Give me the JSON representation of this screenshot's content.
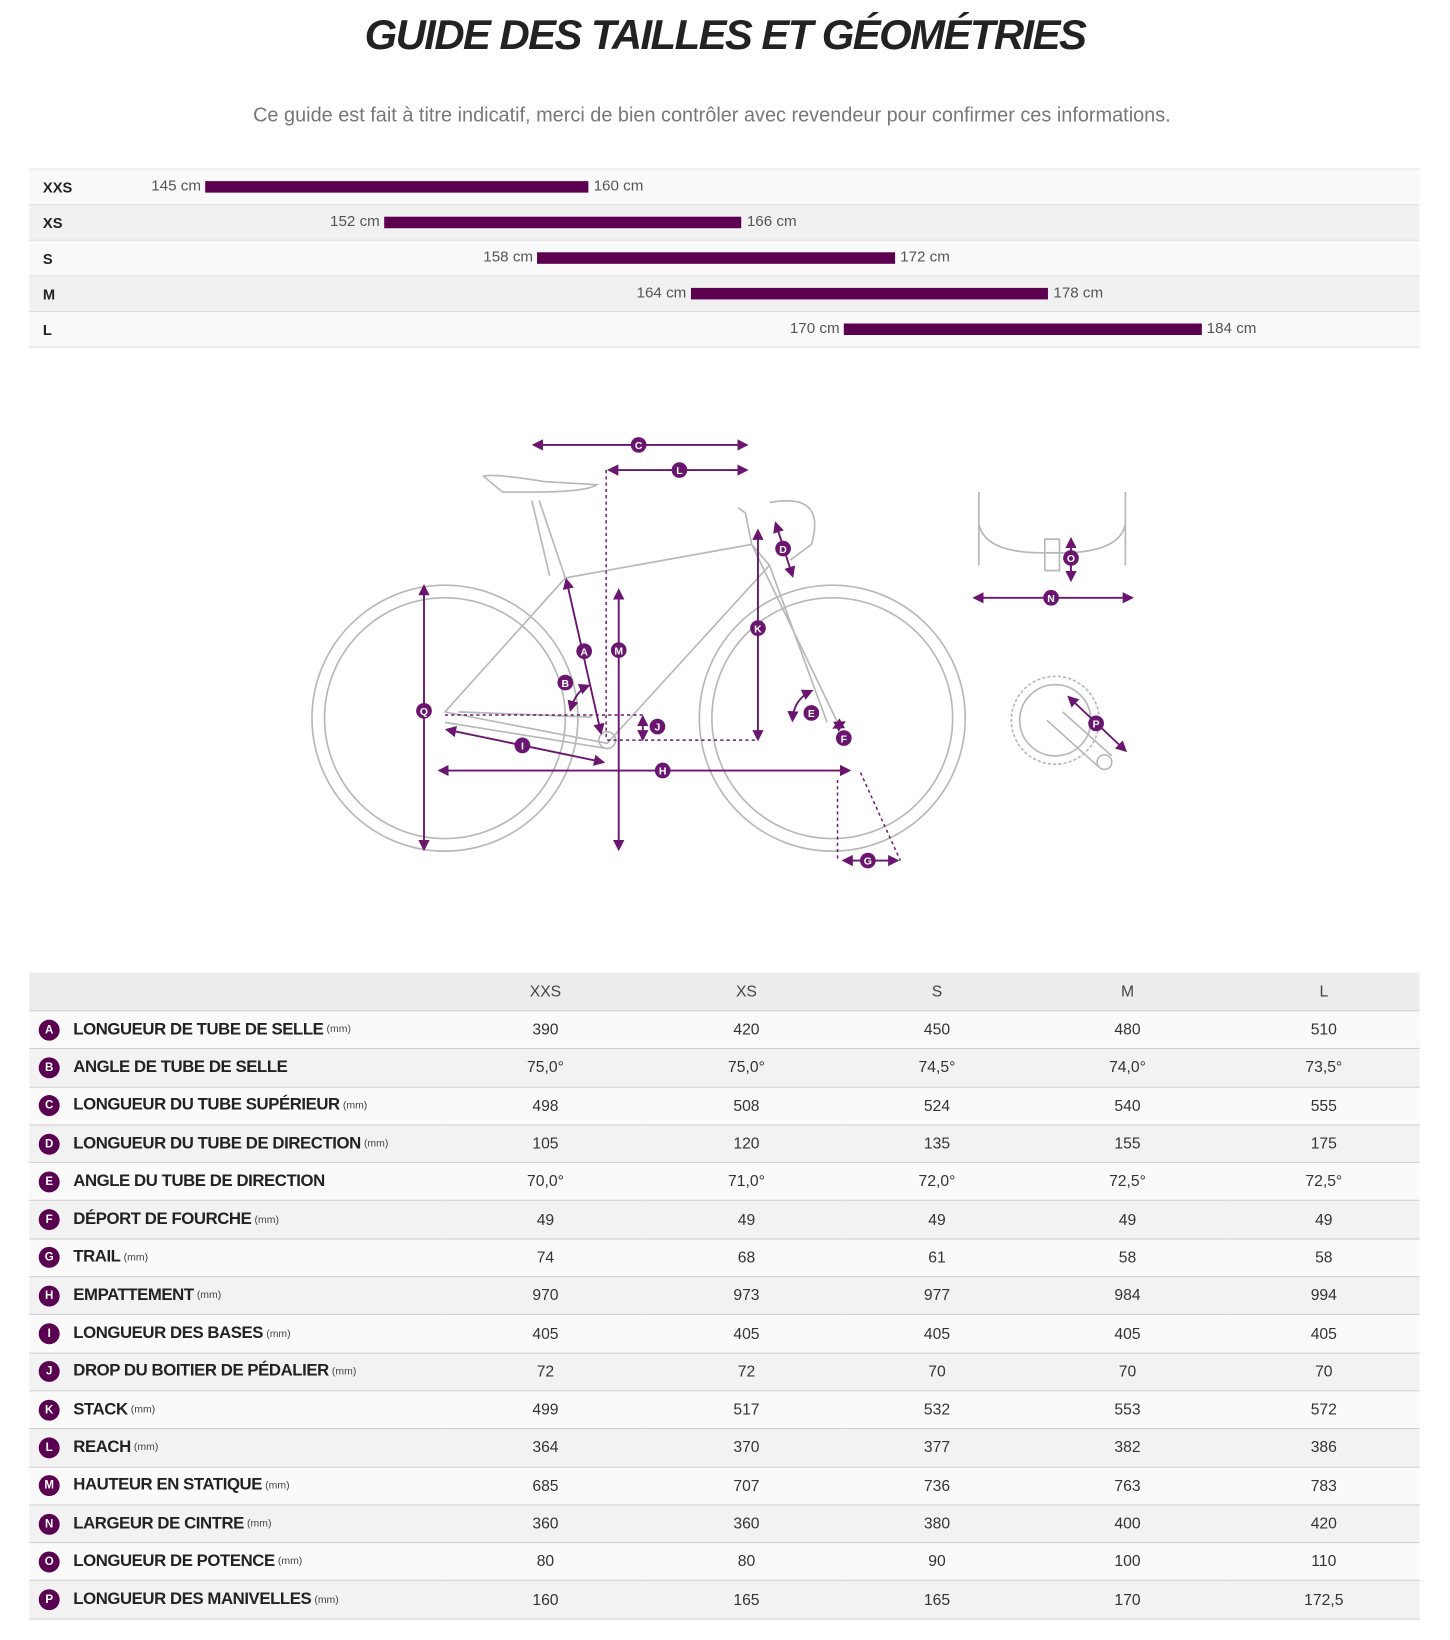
{
  "title": "GUIDE DES TAILLES ET GÉOMÉTRIES",
  "subtitle": "Ce guide est fait à titre indicatif, merci de bien contrôler avec revendeur pour confirmer ces informations.",
  "accent_color": "#5c0050",
  "size_chart": {
    "unit": "cm",
    "rows": [
      {
        "size": "XXS",
        "min": 145,
        "max": 160,
        "min_label": "145 cm",
        "max_label": "160 cm"
      },
      {
        "size": "XS",
        "min": 152,
        "max": 166,
        "min_label": "152 cm",
        "max_label": "166 cm"
      },
      {
        "size": "S",
        "min": 158,
        "max": 172,
        "min_label": "158 cm",
        "max_label": "172 cm"
      },
      {
        "size": "M",
        "min": 164,
        "max": 178,
        "min_label": "164 cm",
        "max_label": "178 cm"
      },
      {
        "size": "L",
        "min": 170,
        "max": 184,
        "min_label": "170 cm",
        "max_label": "184 cm"
      }
    ]
  },
  "diagram": {
    "labels": [
      "A",
      "B",
      "C",
      "D",
      "E",
      "F",
      "G",
      "H",
      "I",
      "J",
      "K",
      "L",
      "M",
      "N",
      "O",
      "P",
      "Q"
    ]
  },
  "geometry": {
    "columns": [
      "XXS",
      "XS",
      "S",
      "M",
      "L"
    ],
    "rows": [
      {
        "key": "A",
        "name": "LONGUEUR DE TUBE DE SELLE",
        "unit": "(mm)",
        "values": [
          "390",
          "420",
          "450",
          "480",
          "510"
        ]
      },
      {
        "key": "B",
        "name": "ANGLE DE TUBE DE SELLE",
        "unit": "",
        "values": [
          "75,0°",
          "75,0°",
          "74,5°",
          "74,0°",
          "73,5°"
        ]
      },
      {
        "key": "C",
        "name": "LONGUEUR DU TUBE SUPÉRIEUR",
        "unit": "(mm)",
        "values": [
          "498",
          "508",
          "524",
          "540",
          "555"
        ]
      },
      {
        "key": "D",
        "name": "LONGUEUR DU TUBE DE DIRECTION",
        "unit": "(mm)",
        "values": [
          "105",
          "120",
          "135",
          "155",
          "175"
        ]
      },
      {
        "key": "E",
        "name": "ANGLE DU TUBE DE DIRECTION",
        "unit": "",
        "values": [
          "70,0°",
          "71,0°",
          "72,0°",
          "72,5°",
          "72,5°"
        ]
      },
      {
        "key": "F",
        "name": "DÉPORT DE FOURCHE",
        "unit": "(mm)",
        "values": [
          "49",
          "49",
          "49",
          "49",
          "49"
        ]
      },
      {
        "key": "G",
        "name": "TRAIL",
        "unit": "(mm)",
        "values": [
          "74",
          "68",
          "61",
          "58",
          "58"
        ]
      },
      {
        "key": "H",
        "name": "EMPATTEMENT",
        "unit": "(mm)",
        "values": [
          "970",
          "973",
          "977",
          "984",
          "994"
        ]
      },
      {
        "key": "I",
        "name": "LONGUEUR DES BASES",
        "unit": "(mm)",
        "values": [
          "405",
          "405",
          "405",
          "405",
          "405"
        ]
      },
      {
        "key": "J",
        "name": "DROP DU BOITIER DE PÉDALIER",
        "unit": "(mm)",
        "values": [
          "72",
          "72",
          "70",
          "70",
          "70"
        ]
      },
      {
        "key": "K",
        "name": "STACK",
        "unit": "(mm)",
        "values": [
          "499",
          "517",
          "532",
          "553",
          "572"
        ]
      },
      {
        "key": "L",
        "name": "REACH",
        "unit": "(mm)",
        "values": [
          "364",
          "370",
          "377",
          "382",
          "386"
        ]
      },
      {
        "key": "M",
        "name": "HAUTEUR EN STATIQUE",
        "unit": "(mm)",
        "values": [
          "685",
          "707",
          "736",
          "763",
          "783"
        ]
      },
      {
        "key": "N",
        "name": "LARGEUR DE CINTRE",
        "unit": "(mm)",
        "values": [
          "360",
          "360",
          "380",
          "400",
          "420"
        ]
      },
      {
        "key": "O",
        "name": "LONGUEUR DE POTENCE",
        "unit": "(mm)",
        "values": [
          "80",
          "80",
          "90",
          "100",
          "110"
        ]
      },
      {
        "key": "P",
        "name": "LONGUEUR DES MANIVELLES",
        "unit": "(mm)",
        "values": [
          "160",
          "165",
          "165",
          "170",
          "172,5"
        ]
      }
    ]
  }
}
